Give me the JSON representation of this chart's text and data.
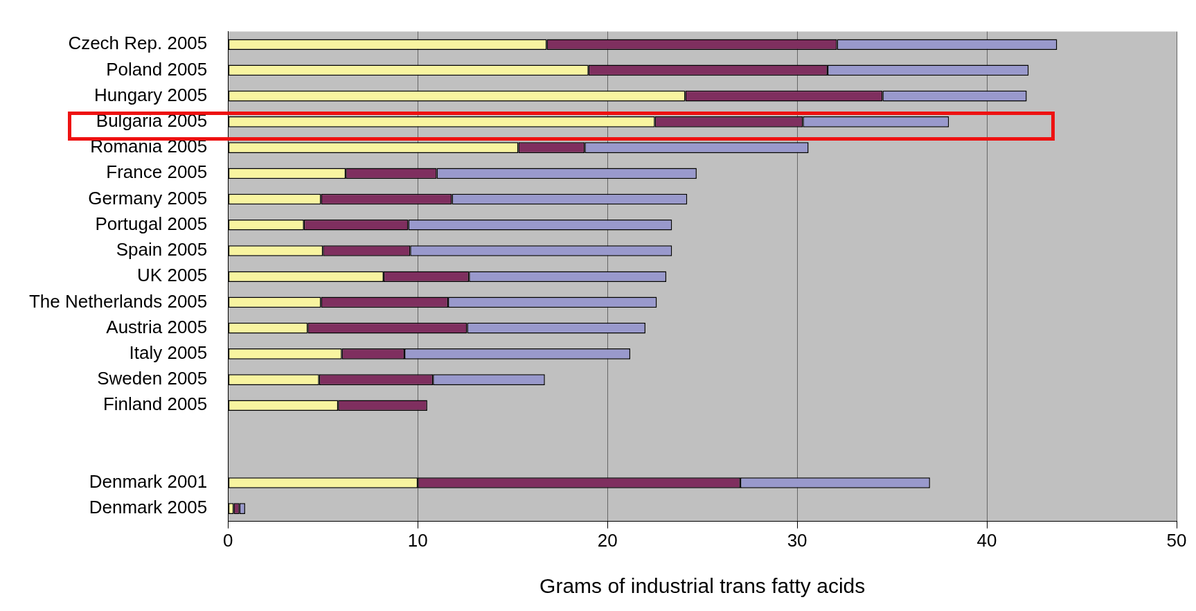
{
  "chart_data": {
    "type": "bar",
    "orientation": "horizontal",
    "stacked": true,
    "xlabel": "Grams of industrial trans fatty acids",
    "categories": [
      "Czech Rep. 2005",
      "Poland 2005",
      "Hungary 2005",
      "Bulgaria 2005",
      "Romania 2005",
      "France 2005",
      "Germany 2005",
      "Portugal 2005",
      "Spain 2005",
      "UK 2005",
      "The Netherlands 2005",
      "Austria 2005",
      "Italy 2005",
      "Sweden 2005",
      "Finland 2005",
      null,
      null,
      "Denmark 2001",
      "Denmark 2005"
    ],
    "series": [
      {
        "color": "#f8f4a0",
        "values": [
          16.8,
          19.0,
          24.1,
          22.5,
          15.3,
          6.2,
          4.9,
          4.0,
          5.0,
          8.2,
          4.9,
          4.2,
          6.0,
          4.8,
          5.8,
          null,
          null,
          10.0,
          0.3
        ]
      },
      {
        "color": "#7f2f5f",
        "values": [
          15.3,
          12.6,
          10.4,
          7.8,
          3.5,
          4.8,
          6.9,
          5.5,
          4.6,
          4.5,
          6.7,
          8.4,
          3.3,
          6.0,
          4.7,
          null,
          null,
          17.0,
          0.3
        ]
      },
      {
        "color": "#9999cc",
        "values": [
          11.6,
          10.6,
          7.6,
          7.7,
          11.8,
          13.7,
          12.4,
          13.9,
          13.8,
          10.4,
          11.0,
          9.4,
          11.9,
          5.9,
          null,
          null,
          null,
          10.0,
          0.3
        ]
      }
    ],
    "xlim": [
      0,
      50
    ],
    "xticks": [
      0,
      10,
      20,
      30,
      40,
      50
    ],
    "grid": "x",
    "legend": false
  }
}
